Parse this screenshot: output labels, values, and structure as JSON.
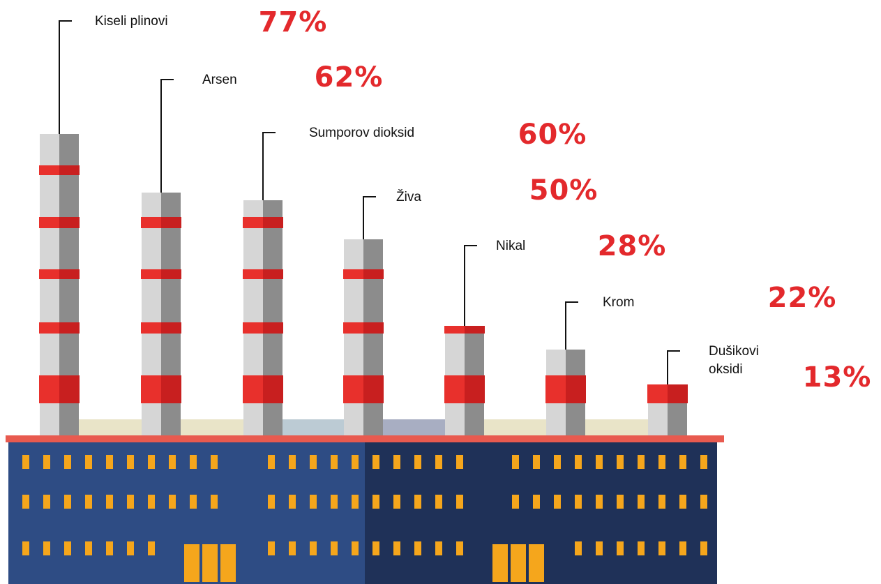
{
  "chart_data": {
    "type": "bar",
    "categories": [
      "Kiseli plinovi",
      "Arsen",
      "Sumporov dioksid",
      "Živa",
      "Nikal",
      "Krom",
      "Dušikovi oksidi"
    ],
    "values": [
      77,
      62,
      60,
      50,
      28,
      22,
      13
    ],
    "value_labels": [
      "77%",
      "62%",
      "60%",
      "50%",
      "28%",
      "22%",
      "13%"
    ],
    "unit": "%",
    "ylim": [
      0,
      100
    ],
    "colors": {
      "chimney_light": "#d6d6d6",
      "chimney_dark": "#8c8c8c",
      "stripe": "#e8302c",
      "stripe_dark": "#c81f1f",
      "roof": "#e85a4f",
      "building_left": "#2e4c84",
      "building_right": "#1f3158",
      "window": "#f5a61c",
      "label_text": "#111111",
      "value_text": "#e3292c"
    }
  }
}
